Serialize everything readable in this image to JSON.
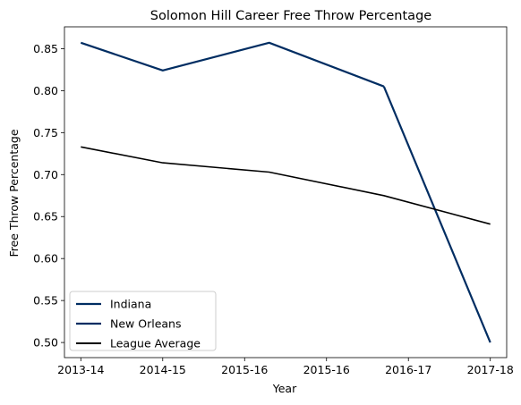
{
  "chart_data": {
    "type": "line",
    "title": "Solomon Hill  Career Free Throw Percentage",
    "xlabel": "Year",
    "ylabel": "Free Throw Percentage",
    "x_tick_labels": [
      "2013-14",
      "2014-15",
      "2015-16",
      "2015-16",
      "2016-17",
      "2017-18"
    ],
    "y_ticks": [
      0.5,
      0.55,
      0.6,
      0.65,
      0.7,
      0.75,
      0.8,
      0.85
    ],
    "y_tick_labels": [
      "0.50",
      "0.55",
      "0.60",
      "0.65",
      "0.70",
      "0.75",
      "0.80",
      "0.85"
    ],
    "xlim": [
      -0.2,
      5.2
    ],
    "ylim": [
      0.482,
      0.876
    ],
    "grid": false,
    "legend_position": "lower-left",
    "series": [
      {
        "name": "Indiana",
        "color": "#002D62",
        "x": [
          0,
          1,
          2.3,
          3.7
        ],
        "values": [
          0.857,
          0.824,
          0.857,
          0.805
        ]
      },
      {
        "name": "New Orleans",
        "color": "#002D62",
        "x": [
          3.7,
          5
        ],
        "values": [
          0.805,
          0.5
        ]
      },
      {
        "name": "League Average",
        "color": "#000000",
        "x": [
          0,
          1,
          2.3,
          3.7,
          5
        ],
        "values": [
          0.733,
          0.714,
          0.703,
          0.675,
          0.641
        ]
      }
    ]
  }
}
